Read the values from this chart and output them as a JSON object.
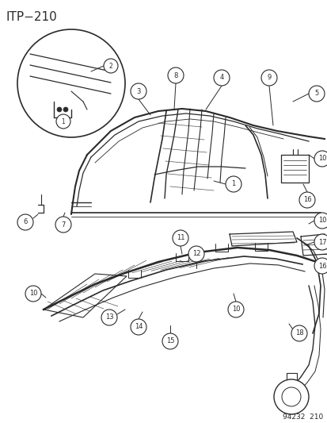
{
  "title": "ITP−210",
  "footer": "94232  210",
  "bg_color": "#ffffff",
  "line_color": "#2a2a2a",
  "title_fontsize": 11,
  "callout_r": 0.02
}
